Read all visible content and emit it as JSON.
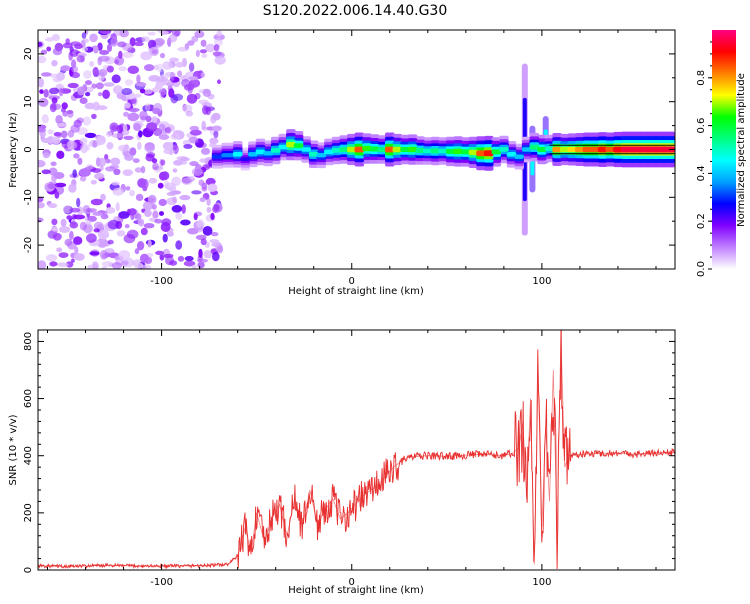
{
  "title": "S120.2022.006.14.40.G30",
  "chart_data": [
    {
      "type": "heatmap",
      "title": "S120.2022.006.14.40.G30",
      "xlabel": "Height of straight line (km)",
      "ylabel": "Frequency (Hz)",
      "xlim": [
        -165,
        170
      ],
      "ylim": [
        -25,
        25
      ],
      "x_ticks": [
        -100,
        0,
        100
      ],
      "y_ticks": [
        -20,
        -10,
        0,
        10,
        20
      ],
      "colorbar": {
        "label": "Normalized spectral amplitude",
        "range": [
          0,
          1
        ],
        "ticks": [
          "0.0",
          "0.2",
          "0.4",
          "0.6",
          "0.8"
        ],
        "colors": [
          "#ffffff",
          "#c080ff",
          "#8000ff",
          "#0000ff",
          "#00a0ff",
          "#00ffff",
          "#00ff80",
          "#00ff00",
          "#ffff00",
          "#ff8000",
          "#ff0000",
          "#ff0080"
        ]
      },
      "noise_region_x": [
        -165,
        -69
      ],
      "ridge": [
        {
          "x": -73,
          "f": -1.5,
          "a": 0.3
        },
        {
          "x": -68,
          "f": -1.2,
          "a": 0.35
        },
        {
          "x": -62,
          "f": -1.0,
          "a": 0.45
        },
        {
          "x": -58,
          "f": -2.0,
          "a": 0.25
        },
        {
          "x": -54,
          "f": -1.0,
          "a": 0.4
        },
        {
          "x": -50,
          "f": -0.5,
          "a": 0.45
        },
        {
          "x": -46,
          "f": -0.8,
          "a": 0.4
        },
        {
          "x": -42,
          "f": -0.2,
          "a": 0.5
        },
        {
          "x": -38,
          "f": 0.5,
          "a": 0.45
        },
        {
          "x": -34,
          "f": 1.0,
          "a": 0.7
        },
        {
          "x": -30,
          "f": 0.8,
          "a": 0.6
        },
        {
          "x": -26,
          "f": 0.0,
          "a": 0.45
        },
        {
          "x": -22,
          "f": -1.0,
          "a": 0.5
        },
        {
          "x": -18,
          "f": -1.2,
          "a": 0.4
        },
        {
          "x": -14,
          "f": -0.5,
          "a": 0.45
        },
        {
          "x": -10,
          "f": -0.2,
          "a": 0.5
        },
        {
          "x": -6,
          "f": 0.0,
          "a": 0.55
        },
        {
          "x": -2,
          "f": 0.0,
          "a": 0.7
        },
        {
          "x": 2,
          "f": 0.0,
          "a": 0.85
        },
        {
          "x": 6,
          "f": 0.2,
          "a": 0.65
        },
        {
          "x": 10,
          "f": 0.1,
          "a": 0.6
        },
        {
          "x": 14,
          "f": 0.0,
          "a": 0.55
        },
        {
          "x": 18,
          "f": 0.0,
          "a": 0.85
        },
        {
          "x": 22,
          "f": 0.0,
          "a": 0.7
        },
        {
          "x": 26,
          "f": 0.0,
          "a": 0.6
        },
        {
          "x": 30,
          "f": 0.0,
          "a": 0.65
        },
        {
          "x": 34,
          "f": -0.2,
          "a": 0.55
        },
        {
          "x": 38,
          "f": -0.3,
          "a": 0.5
        },
        {
          "x": 42,
          "f": -0.3,
          "a": 0.55
        },
        {
          "x": 46,
          "f": -0.3,
          "a": 0.5
        },
        {
          "x": 50,
          "f": -0.4,
          "a": 0.6
        },
        {
          "x": 54,
          "f": -0.4,
          "a": 0.65
        },
        {
          "x": 58,
          "f": -0.5,
          "a": 0.6
        },
        {
          "x": 62,
          "f": -0.6,
          "a": 0.7
        },
        {
          "x": 66,
          "f": -0.8,
          "a": 0.85
        },
        {
          "x": 70,
          "f": -0.8,
          "a": 0.9
        },
        {
          "x": 74,
          "f": -0.5,
          "a": 0.6
        },
        {
          "x": 78,
          "f": 0.0,
          "a": 0.5
        },
        {
          "x": 82,
          "f": -1.0,
          "a": 0.45
        },
        {
          "x": 86,
          "f": -1.5,
          "a": 0.4
        },
        {
          "x": 90,
          "f": 0.0,
          "a": 0.4
        },
        {
          "x": 94,
          "f": 0.5,
          "a": 0.55
        },
        {
          "x": 98,
          "f": 0.0,
          "a": 0.6
        },
        {
          "x": 102,
          "f": 0.2,
          "a": 0.5
        },
        {
          "x": 106,
          "f": 0.0,
          "a": 0.8
        },
        {
          "x": 110,
          "f": 0.0,
          "a": 0.7
        },
        {
          "x": 114,
          "f": 0.0,
          "a": 0.75
        },
        {
          "x": 118,
          "f": 0.0,
          "a": 0.8
        },
        {
          "x": 122,
          "f": 0.0,
          "a": 0.85
        },
        {
          "x": 126,
          "f": 0.0,
          "a": 0.85
        },
        {
          "x": 130,
          "f": 0.0,
          "a": 0.9
        },
        {
          "x": 134,
          "f": 0.0,
          "a": 0.85
        },
        {
          "x": 138,
          "f": 0.0,
          "a": 0.92
        },
        {
          "x": 142,
          "f": 0.0,
          "a": 0.95
        },
        {
          "x": 146,
          "f": 0.0,
          "a": 0.95
        },
        {
          "x": 150,
          "f": 0.0,
          "a": 0.95
        },
        {
          "x": 154,
          "f": 0.0,
          "a": 0.95
        },
        {
          "x": 158,
          "f": 0.0,
          "a": 0.95
        },
        {
          "x": 162,
          "f": 0.0,
          "a": 0.95
        },
        {
          "x": 166,
          "f": 0.0,
          "a": 0.95
        }
      ],
      "spikes": [
        {
          "x": 91,
          "f_min": -18,
          "f_max": 18,
          "a": 0.25
        },
        {
          "x": 95,
          "f_min": -9,
          "f_max": 5,
          "a": 0.45
        },
        {
          "x": 102,
          "f_min": -3,
          "f_max": 7,
          "a": 0.45
        }
      ]
    },
    {
      "type": "line",
      "xlabel": "Height of straight line (km)",
      "ylabel": "SNR (10 * v/v)",
      "xlim": [
        -165,
        170
      ],
      "ylim": [
        0,
        840
      ],
      "x_ticks": [
        -100,
        0,
        100
      ],
      "y_ticks": [
        0,
        200,
        400,
        600,
        800
      ],
      "color": "#e83030",
      "series": [
        {
          "x": [
            -165,
            -150,
            -130,
            -110,
            -90,
            -75,
            -65,
            -60,
            -56,
            -53,
            -50,
            -46,
            -42,
            -38,
            -34,
            -30,
            -26,
            -22,
            -18,
            -14,
            -10,
            -6,
            -2,
            2,
            6,
            10,
            14,
            18,
            22,
            26,
            30,
            40,
            50,
            60,
            70,
            80,
            85,
            88,
            90,
            92,
            94,
            96,
            98,
            100,
            102,
            104,
            106,
            108,
            110,
            112,
            114,
            120,
            130,
            140,
            150,
            160,
            170
          ],
          "y": [
            15,
            12,
            16,
            14,
            14,
            16,
            20,
            50,
            150,
            60,
            200,
            100,
            180,
            230,
            120,
            250,
            150,
            280,
            160,
            210,
            250,
            180,
            200,
            230,
            260,
            280,
            300,
            330,
            360,
            380,
            395,
            400,
            398,
            402,
            405,
            400,
            410,
            430,
            520,
            250,
            600,
            20,
            680,
            150,
            500,
            240,
            700,
            120,
            820,
            360,
            400,
            405,
            408,
            410,
            405,
            410,
            412
          ]
        }
      ]
    }
  ]
}
